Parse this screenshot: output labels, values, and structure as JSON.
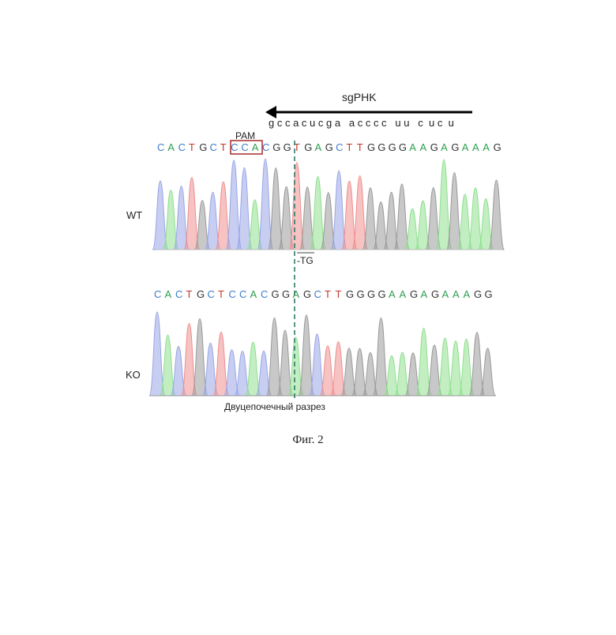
{
  "sgrna": {
    "label": "sgPHK",
    "sequence": "g c c a c u c g a   a c c c c   u u   c  u c  u"
  },
  "pam_label": "PAM",
  "wt": {
    "label": "WT",
    "sequence": [
      "C",
      "A",
      "C",
      "T",
      "G",
      "C",
      "T",
      "C",
      "C",
      "A",
      "C",
      "G",
      "G",
      "T",
      "G",
      "A",
      "G",
      "C",
      "T",
      "T",
      "G",
      "G",
      "G",
      "G",
      "A",
      "A",
      "G",
      "A",
      "G",
      "A",
      "A",
      "A",
      "G"
    ]
  },
  "deletion_label": "-TG",
  "ko": {
    "label": "KO",
    "sequence": [
      "C",
      "A",
      "C",
      "T",
      "G",
      "C",
      "T",
      "C",
      "C",
      "A",
      "C",
      "G",
      "G",
      "A",
      "G",
      "C",
      "T",
      "T",
      "G",
      "G",
      "G",
      "G",
      "A",
      "A",
      "G",
      "A",
      "G",
      "A",
      "A",
      "A",
      "G",
      "G"
    ]
  },
  "cut_label": "Двуцепочечный разрез",
  "caption": "Фиг. 2",
  "colors": {
    "A": "#2e9e4f",
    "C": "#3d7cc9",
    "G": "#333333",
    "T": "#c0392b",
    "pam_box": "#a52a2a",
    "cut_line": "#2d7a6b",
    "peak_A": "#8fe08f",
    "peak_C": "#9aa6e6",
    "peak_G": "#9a9a9a",
    "peak_T": "#ef8f8f"
  }
}
